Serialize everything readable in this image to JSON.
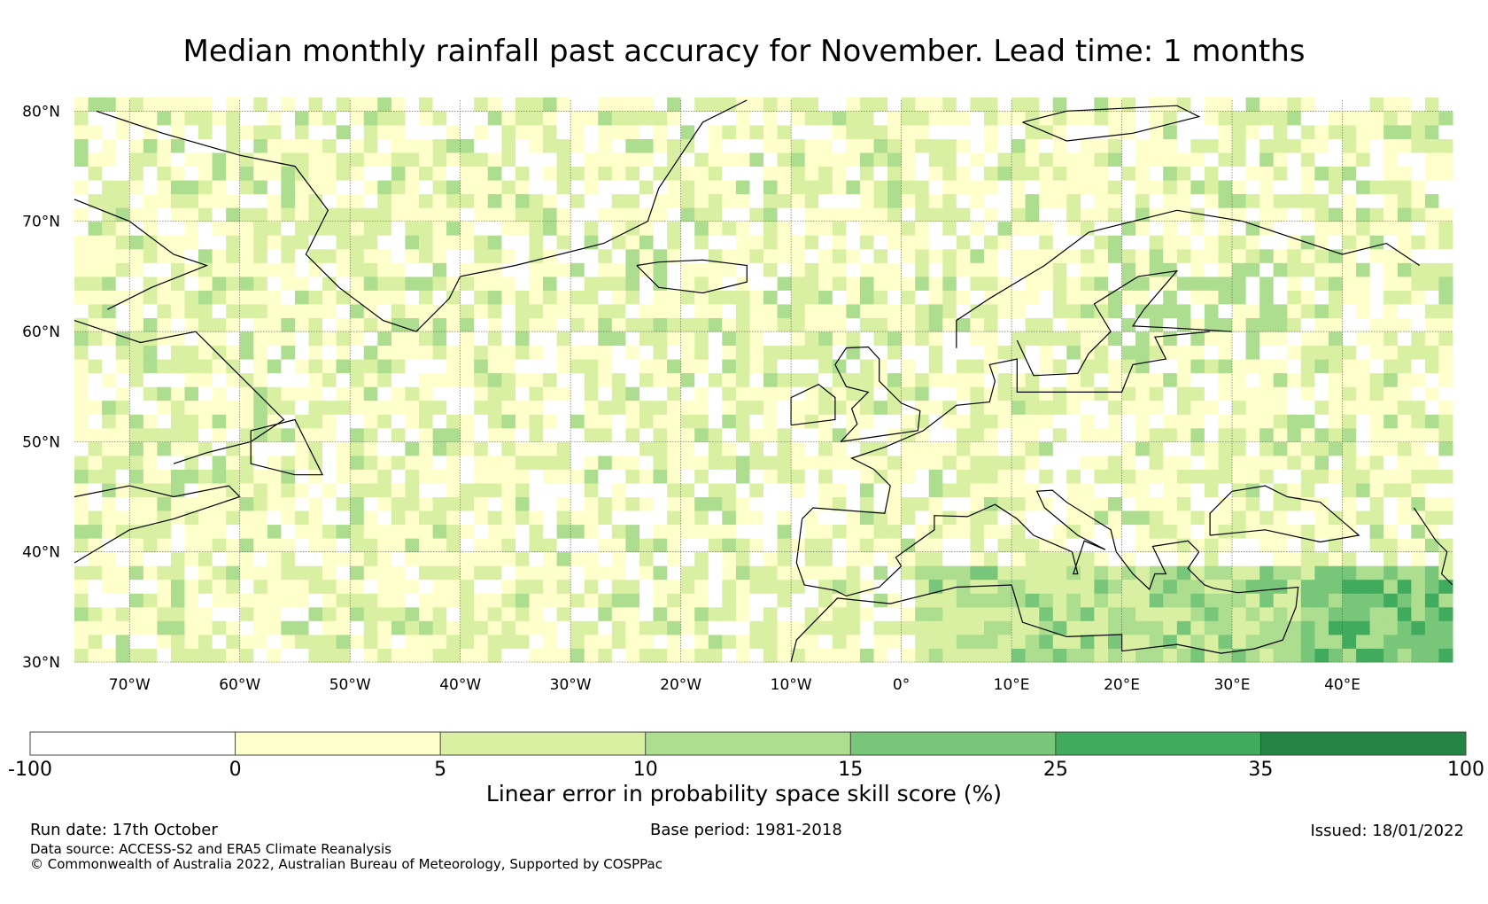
{
  "title": "Median monthly rainfall past accuracy for November. Lead time: 1 months",
  "map": {
    "lon_range": [
      -75,
      50
    ],
    "lat_range": [
      30,
      81
    ],
    "lat_ticks": [
      {
        "value": 30,
        "label": "30°N"
      },
      {
        "value": 40,
        "label": "40°N"
      },
      {
        "value": 50,
        "label": "50°N"
      },
      {
        "value": 60,
        "label": "60°N"
      },
      {
        "value": 70,
        "label": "70°N"
      },
      {
        "value": 80,
        "label": "80°N"
      }
    ],
    "lon_ticks": [
      {
        "value": -70,
        "label": "70°W"
      },
      {
        "value": -60,
        "label": "60°W"
      },
      {
        "value": -50,
        "label": "50°W"
      },
      {
        "value": -40,
        "label": "40°W"
      },
      {
        "value": -30,
        "label": "30°W"
      },
      {
        "value": -20,
        "label": "20°W"
      },
      {
        "value": -10,
        "label": "10°W"
      },
      {
        "value": 0,
        "label": "0°"
      },
      {
        "value": 10,
        "label": "10°E"
      },
      {
        "value": 20,
        "label": "20°E"
      },
      {
        "value": 30,
        "label": "30°E"
      },
      {
        "value": 40,
        "label": "40°E"
      }
    ]
  },
  "colorbar": {
    "title": "Linear error in probability space skill score (%)",
    "boundaries": [
      "-100",
      "0",
      "5",
      "10",
      "15",
      "25",
      "35",
      "100"
    ],
    "colors": [
      "#ffffff",
      "#ffffcc",
      "#d9f0a3",
      "#addd8e",
      "#78c679",
      "#41ab5d",
      "#238443"
    ]
  },
  "footer": {
    "run_date": "Run date: 17th October",
    "base_period": "Base period: 1981-2018",
    "issued": "Issued: 18/01/2022",
    "data_source": "Data source: ACCESS-S2 and ERA5 Climate Reanalysis",
    "copyright": "© Commonwealth of Australia 2022, Australian Bureau of Meteorology, Supported by COSPPac"
  }
}
